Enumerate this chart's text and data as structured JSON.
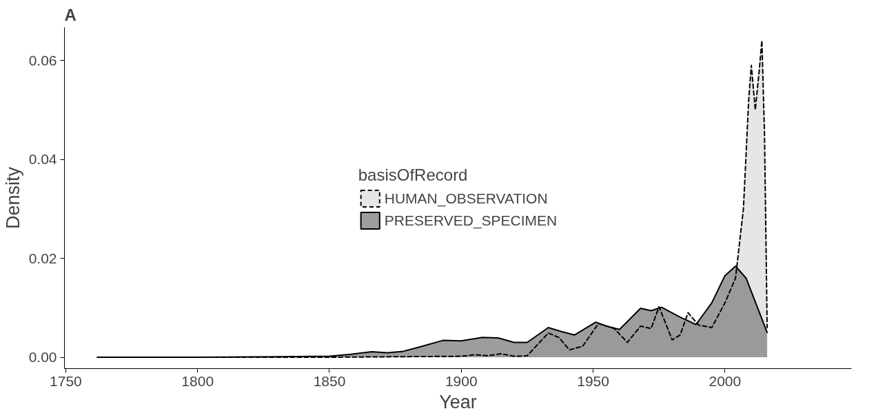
{
  "chart_data": {
    "type": "area",
    "title": "A",
    "xlabel": "Year",
    "ylabel": "Density",
    "legend_title": "basisOfRecord",
    "legend": "center",
    "grid": false,
    "xlim": [
      1749.5,
      2048
    ],
    "xticks": [
      1750,
      1800,
      1850,
      1900,
      1950,
      2000
    ],
    "ylim": [
      -0.0023,
      0.0667
    ],
    "yticks": [
      {
        "value": 0,
        "label": "0.00"
      },
      0.02,
      0.04,
      0.06
    ],
    "series": [
      {
        "name": "HUMAN_OBSERVATION",
        "color": "#e6e6e6",
        "line_style": "dashed",
        "x": [
          1762,
          1850,
          1900,
          1905,
          1910,
          1915,
          1920,
          1925,
          1933,
          1937,
          1941,
          1946,
          1952,
          1958,
          1963,
          1968,
          1972,
          1975,
          1980,
          1983,
          1986,
          1990,
          1995,
          2000,
          2004,
          2007,
          2009,
          2010,
          2011.5,
          2013,
          2014,
          2015,
          2016
        ],
        "values": [
          0,
          0,
          0.0002,
          0.0005,
          0.0003,
          0.0007,
          0.0002,
          0.0003,
          0.0049,
          0.004,
          0.0015,
          0.0022,
          0.0068,
          0.0058,
          0.003,
          0.0063,
          0.0058,
          0.0102,
          0.0035,
          0.0045,
          0.009,
          0.0065,
          0.006,
          0.011,
          0.016,
          0.03,
          0.052,
          0.059,
          0.05,
          0.058,
          0.064,
          0.045,
          0.006
        ]
      },
      {
        "name": "PRESERVED_SPECIMEN",
        "color": "#8c8c8c",
        "line_style": "solid",
        "x": [
          1762,
          1800,
          1830,
          1850,
          1858,
          1866,
          1872,
          1878,
          1885,
          1893,
          1900,
          1908,
          1914,
          1920,
          1925,
          1933,
          1938,
          1943,
          1951,
          1955,
          1960,
          1968,
          1972,
          1976,
          1983,
          1989,
          1995,
          2000,
          2004,
          2008,
          2012,
          2016
        ],
        "values": [
          0,
          0,
          0.0001,
          0.0002,
          0.0006,
          0.0011,
          0.0009,
          0.0012,
          0.0022,
          0.0034,
          0.0033,
          0.004,
          0.0039,
          0.003,
          0.003,
          0.006,
          0.0052,
          0.0045,
          0.0071,
          0.0063,
          0.0056,
          0.0099,
          0.0094,
          0.0101,
          0.0081,
          0.0066,
          0.011,
          0.0165,
          0.0184,
          0.016,
          0.0105,
          0.005
        ]
      }
    ]
  }
}
